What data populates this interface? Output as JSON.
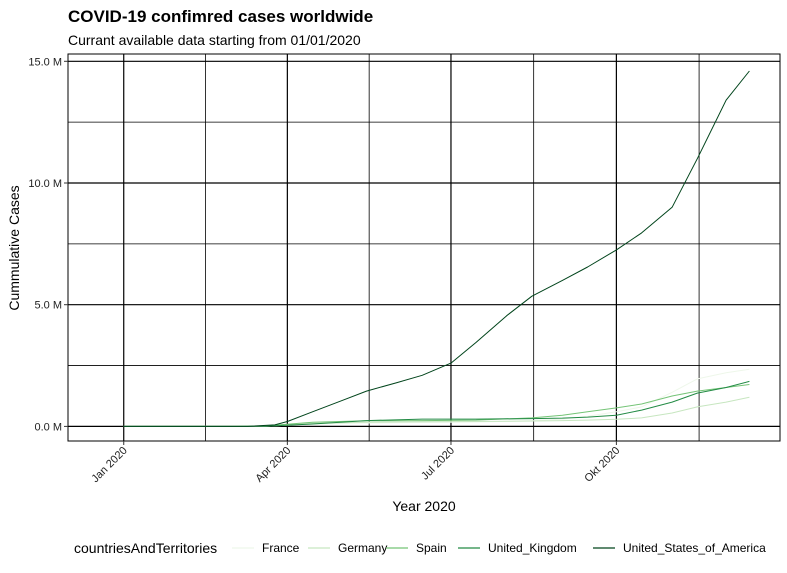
{
  "chart_data": {
    "type": "line",
    "title": "COVID-19 confimred cases worldwide",
    "subtitle": "Currant available data starting from 01/01/2020",
    "xlabel": "Year 2020",
    "ylabel": "Cummulative Cases",
    "y_tick_labels": [
      "0.0 M",
      "5.0 M",
      "10.0 M",
      "15.0 M"
    ],
    "y_ticks": [
      0,
      5,
      10,
      15
    ],
    "y_unit": "million cases",
    "x_tick_labels": [
      "Jan 2020",
      "Apr 2020",
      "Jul 2020",
      "Okt 2020"
    ],
    "x_ticks": [
      "2020-01-01",
      "2020-04-01",
      "2020-07-01",
      "2020-10-01"
    ],
    "xlim": [
      "2019-12-01",
      "2020-12-31"
    ],
    "ylim": [
      -0.6,
      15.3
    ],
    "grid": true,
    "legend_position": "bottom",
    "legend_title": "countriesAndTerritories",
    "series": [
      {
        "name": "France",
        "color": "#eef7ea",
        "points": [
          [
            "2020-01-01",
            0
          ],
          [
            "2020-03-01",
            0
          ],
          [
            "2020-03-20",
            0.01
          ],
          [
            "2020-04-15",
            0.1
          ],
          [
            "2020-05-15",
            0.14
          ],
          [
            "2020-06-15",
            0.16
          ],
          [
            "2020-07-15",
            0.18
          ],
          [
            "2020-08-15",
            0.23
          ],
          [
            "2020-09-01",
            0.3
          ],
          [
            "2020-09-15",
            0.42
          ],
          [
            "2020-10-01",
            0.6
          ],
          [
            "2020-10-15",
            0.8
          ],
          [
            "2020-11-01",
            1.4
          ],
          [
            "2020-11-15",
            1.95
          ],
          [
            "2020-12-01",
            2.2
          ],
          [
            "2020-12-14",
            2.35
          ]
        ]
      },
      {
        "name": "Germany",
        "color": "#c7e6c0",
        "points": [
          [
            "2020-01-01",
            0
          ],
          [
            "2020-03-01",
            0
          ],
          [
            "2020-03-20",
            0.02
          ],
          [
            "2020-04-15",
            0.13
          ],
          [
            "2020-05-15",
            0.17
          ],
          [
            "2020-06-15",
            0.19
          ],
          [
            "2020-07-15",
            0.2
          ],
          [
            "2020-08-15",
            0.22
          ],
          [
            "2020-09-01",
            0.24
          ],
          [
            "2020-09-15",
            0.26
          ],
          [
            "2020-10-01",
            0.29
          ],
          [
            "2020-10-15",
            0.35
          ],
          [
            "2020-11-01",
            0.55
          ],
          [
            "2020-11-15",
            0.8
          ],
          [
            "2020-12-01",
            1.0
          ],
          [
            "2020-12-14",
            1.2
          ]
        ]
      },
      {
        "name": "Spain",
        "color": "#74c476",
        "points": [
          [
            "2020-01-01",
            0
          ],
          [
            "2020-03-01",
            0
          ],
          [
            "2020-03-20",
            0.02
          ],
          [
            "2020-04-15",
            0.17
          ],
          [
            "2020-05-15",
            0.23
          ],
          [
            "2020-06-15",
            0.24
          ],
          [
            "2020-07-15",
            0.26
          ],
          [
            "2020-08-15",
            0.35
          ],
          [
            "2020-09-01",
            0.46
          ],
          [
            "2020-09-15",
            0.6
          ],
          [
            "2020-10-01",
            0.76
          ],
          [
            "2020-10-15",
            0.92
          ],
          [
            "2020-11-01",
            1.25
          ],
          [
            "2020-11-15",
            1.45
          ],
          [
            "2020-12-01",
            1.6
          ],
          [
            "2020-12-14",
            1.72
          ]
        ]
      },
      {
        "name": "United_Kingdom",
        "color": "#238b45",
        "points": [
          [
            "2020-01-01",
            0
          ],
          [
            "2020-03-01",
            0
          ],
          [
            "2020-03-20",
            0.01
          ],
          [
            "2020-04-15",
            0.1
          ],
          [
            "2020-05-15",
            0.24
          ],
          [
            "2020-06-15",
            0.3
          ],
          [
            "2020-07-15",
            0.3
          ],
          [
            "2020-08-15",
            0.32
          ],
          [
            "2020-09-01",
            0.34
          ],
          [
            "2020-09-15",
            0.38
          ],
          [
            "2020-10-01",
            0.46
          ],
          [
            "2020-10-15",
            0.67
          ],
          [
            "2020-11-01",
            1.0
          ],
          [
            "2020-11-15",
            1.37
          ],
          [
            "2020-12-01",
            1.6
          ],
          [
            "2020-12-14",
            1.85
          ]
        ]
      },
      {
        "name": "United_States_of_America",
        "color": "#00441b",
        "points": [
          [
            "2020-01-01",
            0
          ],
          [
            "2020-03-10",
            0.0
          ],
          [
            "2020-03-25",
            0.06
          ],
          [
            "2020-04-01",
            0.2
          ],
          [
            "2020-04-15",
            0.6
          ],
          [
            "2020-05-01",
            1.05
          ],
          [
            "2020-05-15",
            1.45
          ],
          [
            "2020-06-01",
            1.8
          ],
          [
            "2020-06-15",
            2.1
          ],
          [
            "2020-07-01",
            2.6
          ],
          [
            "2020-07-15",
            3.45
          ],
          [
            "2020-08-01",
            4.55
          ],
          [
            "2020-08-15",
            5.35
          ],
          [
            "2020-09-01",
            6.0
          ],
          [
            "2020-09-15",
            6.55
          ],
          [
            "2020-10-01",
            7.25
          ],
          [
            "2020-10-15",
            7.95
          ],
          [
            "2020-11-01",
            9.0
          ],
          [
            "2020-11-15",
            11.0
          ],
          [
            "2020-12-01",
            13.4
          ],
          [
            "2020-12-14",
            14.6
          ]
        ]
      }
    ]
  }
}
